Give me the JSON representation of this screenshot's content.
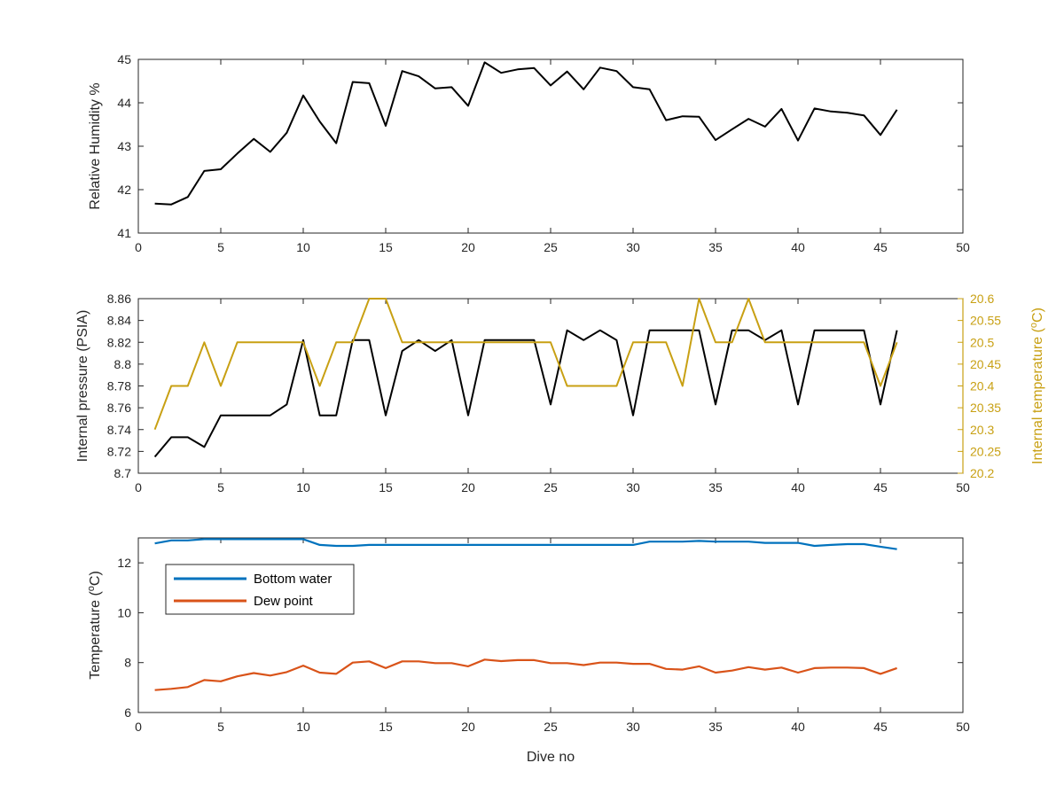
{
  "figure": {
    "xlabel": "Dive no"
  },
  "chart_data": [
    {
      "type": "line",
      "xlim": [
        0,
        50
      ],
      "xticks": [
        "0",
        "5",
        "10",
        "15",
        "20",
        "25",
        "30",
        "35",
        "40",
        "45",
        "50"
      ],
      "ylabel": "Relative Humidity %",
      "ylim": [
        41,
        45
      ],
      "yticks": [
        "41",
        "42",
        "43",
        "44",
        "45"
      ],
      "x": [
        1,
        2,
        3,
        4,
        5,
        6,
        7,
        8,
        9,
        10,
        11,
        12,
        13,
        14,
        15,
        16,
        17,
        18,
        19,
        20,
        21,
        22,
        23,
        24,
        25,
        26,
        27,
        28,
        29,
        30,
        31,
        32,
        33,
        34,
        35,
        36,
        37,
        38,
        39,
        40,
        41,
        42,
        43,
        44,
        45,
        46
      ],
      "series": [
        {
          "color": "#000000",
          "values": [
            41.68,
            41.66,
            41.83,
            42.43,
            42.47,
            42.83,
            43.17,
            42.87,
            43.31,
            44.17,
            43.57,
            43.07,
            44.48,
            44.45,
            43.47,
            44.73,
            44.61,
            44.33,
            44.36,
            43.93,
            44.93,
            44.69,
            44.77,
            44.8,
            44.4,
            44.72,
            44.31,
            44.81,
            44.73,
            44.36,
            44.31,
            43.6,
            43.69,
            43.68,
            43.14,
            43.39,
            43.63,
            43.45,
            43.86,
            43.13,
            43.87,
            43.8,
            43.77,
            43.71,
            43.26,
            43.84
          ]
        }
      ]
    },
    {
      "type": "line",
      "xlim": [
        0,
        50
      ],
      "xticks": [
        "0",
        "5",
        "10",
        "15",
        "20",
        "25",
        "30",
        "35",
        "40",
        "45",
        "50"
      ],
      "ylabel": "Internal pressure (PSIA)",
      "ylim": [
        8.7,
        8.86
      ],
      "yticks": [
        "8.7",
        "8.72",
        "8.74",
        "8.76",
        "8.78",
        "8.8",
        "8.82",
        "8.84",
        "8.86"
      ],
      "y2label": "Internal temperature (°C)",
      "y2lim": [
        20.2,
        20.6
      ],
      "y2ticks": [
        "20.2",
        "20.25",
        "20.3",
        "20.35",
        "20.4",
        "20.45",
        "20.5",
        "20.55",
        "20.6"
      ],
      "x": [
        1,
        2,
        3,
        4,
        5,
        6,
        7,
        8,
        9,
        10,
        11,
        12,
        13,
        14,
        15,
        16,
        17,
        18,
        19,
        20,
        21,
        22,
        23,
        24,
        25,
        26,
        27,
        28,
        29,
        30,
        31,
        32,
        33,
        34,
        35,
        36,
        37,
        38,
        39,
        40,
        41,
        42,
        43,
        44,
        45,
        46
      ],
      "series": [
        {
          "color": "#000000",
          "axis": "left",
          "values": [
            8.715,
            8.733,
            8.733,
            8.724,
            8.753,
            8.753,
            8.753,
            8.753,
            8.763,
            8.822,
            8.753,
            8.753,
            8.822,
            8.822,
            8.753,
            8.812,
            8.822,
            8.812,
            8.822,
            8.753,
            8.822,
            8.822,
            8.822,
            8.822,
            8.763,
            8.831,
            8.822,
            8.831,
            8.822,
            8.753,
            8.831,
            8.831,
            8.831,
            8.831,
            8.763,
            8.831,
            8.831,
            8.822,
            8.831,
            8.763,
            8.831,
            8.831,
            8.831,
            8.831,
            8.763,
            8.831
          ]
        },
        {
          "color": "#C8A013",
          "axis": "right",
          "values": [
            20.3,
            20.4,
            20.4,
            20.5,
            20.4,
            20.5,
            20.5,
            20.5,
            20.5,
            20.5,
            20.4,
            20.5,
            20.5,
            20.6,
            20.6,
            20.5,
            20.5,
            20.5,
            20.5,
            20.5,
            20.5,
            20.5,
            20.5,
            20.5,
            20.5,
            20.4,
            20.4,
            20.4,
            20.4,
            20.5,
            20.5,
            20.5,
            20.4,
            20.6,
            20.5,
            20.5,
            20.6,
            20.5,
            20.5,
            20.5,
            20.5,
            20.5,
            20.5,
            20.5,
            20.4,
            20.5
          ]
        }
      ]
    },
    {
      "type": "line",
      "xlim": [
        0,
        50
      ],
      "xticks": [
        "0",
        "5",
        "10",
        "15",
        "20",
        "25",
        "30",
        "35",
        "40",
        "45",
        "50"
      ],
      "xlabel": "Dive no",
      "ylabel": "Temperature (°C)",
      "ylim": [
        6,
        13
      ],
      "yticks": [
        "6",
        "8",
        "10",
        "12"
      ],
      "legend": "top-left",
      "x": [
        1,
        2,
        3,
        4,
        5,
        6,
        7,
        8,
        9,
        10,
        11,
        12,
        13,
        14,
        15,
        16,
        17,
        18,
        19,
        20,
        21,
        22,
        23,
        24,
        25,
        26,
        27,
        28,
        29,
        30,
        31,
        32,
        33,
        34,
        35,
        36,
        37,
        38,
        39,
        40,
        41,
        42,
        43,
        44,
        45,
        46
      ],
      "series": [
        {
          "name": "Bottom water",
          "color": "#0072BD",
          "values": [
            12.78,
            12.9,
            12.9,
            12.95,
            12.95,
            12.95,
            12.95,
            12.95,
            12.95,
            12.95,
            12.72,
            12.68,
            12.68,
            12.72,
            12.72,
            12.72,
            12.72,
            12.72,
            12.72,
            12.72,
            12.72,
            12.72,
            12.72,
            12.72,
            12.72,
            12.72,
            12.72,
            12.72,
            12.72,
            12.72,
            12.85,
            12.85,
            12.85,
            12.88,
            12.85,
            12.85,
            12.85,
            12.8,
            12.8,
            12.8,
            12.68,
            12.72,
            12.75,
            12.75,
            12.65,
            12.55
          ]
        },
        {
          "name": "Dew point",
          "color": "#D95319",
          "values": [
            6.9,
            6.95,
            7.02,
            7.3,
            7.25,
            7.45,
            7.58,
            7.48,
            7.62,
            7.88,
            7.6,
            7.55,
            8.0,
            8.05,
            7.78,
            8.05,
            8.05,
            7.98,
            7.98,
            7.85,
            8.12,
            8.06,
            8.1,
            8.1,
            7.98,
            7.98,
            7.9,
            8.0,
            8.0,
            7.95,
            7.95,
            7.75,
            7.72,
            7.85,
            7.6,
            7.68,
            7.82,
            7.72,
            7.8,
            7.6,
            7.78,
            7.8,
            7.8,
            7.78,
            7.55,
            7.78
          ]
        }
      ]
    }
  ]
}
